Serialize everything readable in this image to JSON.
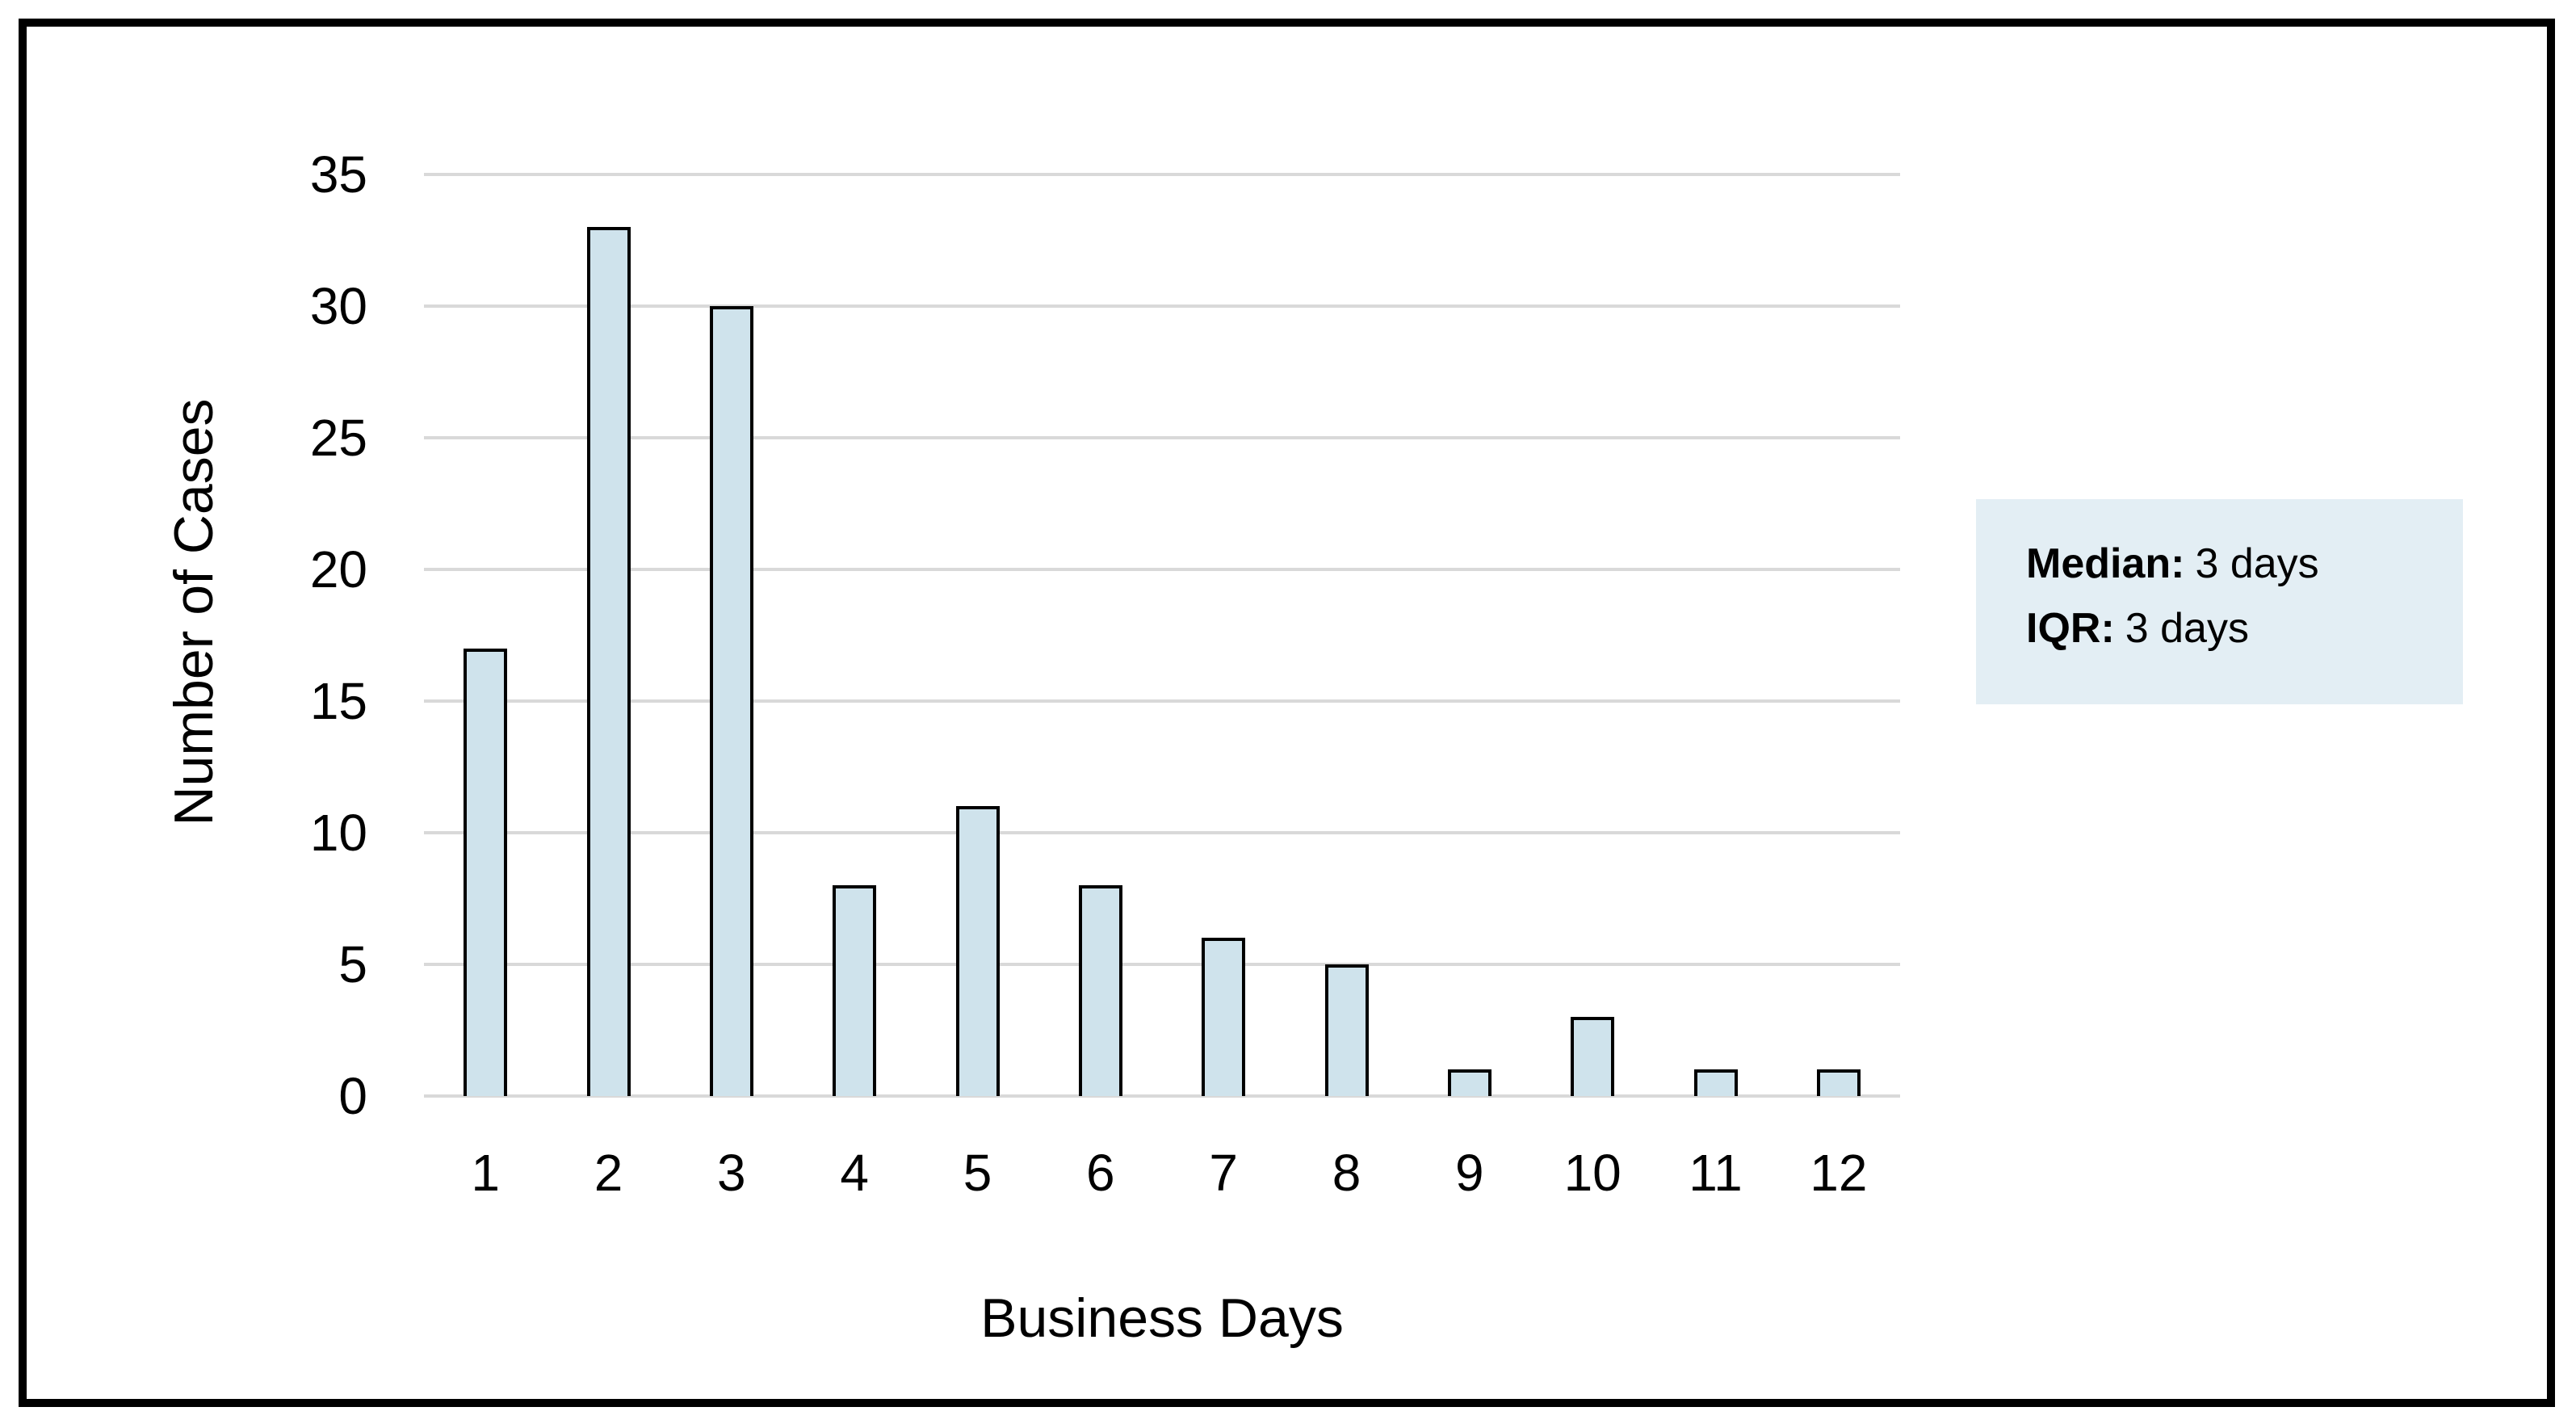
{
  "chart_data": {
    "type": "bar",
    "title": "",
    "categories": [
      "1",
      "2",
      "3",
      "4",
      "5",
      "6",
      "7",
      "8",
      "9",
      "10",
      "11",
      "12"
    ],
    "values": [
      17,
      33,
      30,
      8,
      11,
      8,
      6,
      5,
      1,
      3,
      1,
      1
    ],
    "xlabel": "Business Days",
    "ylabel": "Number of Cases",
    "ylim": [
      0,
      35
    ],
    "yticks": [
      0,
      5,
      10,
      15,
      20,
      25,
      30,
      35
    ],
    "grid": "horizontal",
    "legend": "none",
    "colors": {
      "bar_fill": "#cfe3ec",
      "bar_outline": "#000000",
      "gridline": "#d9d9d9",
      "text": "#000000",
      "frame_border": "#000000",
      "background": "#ffffff"
    }
  },
  "annotation": {
    "background": "#e3eef4",
    "lines": [
      {
        "label": "Median:",
        "value": "3 days"
      },
      {
        "label": "IQR:",
        "value": "3 days"
      }
    ]
  }
}
